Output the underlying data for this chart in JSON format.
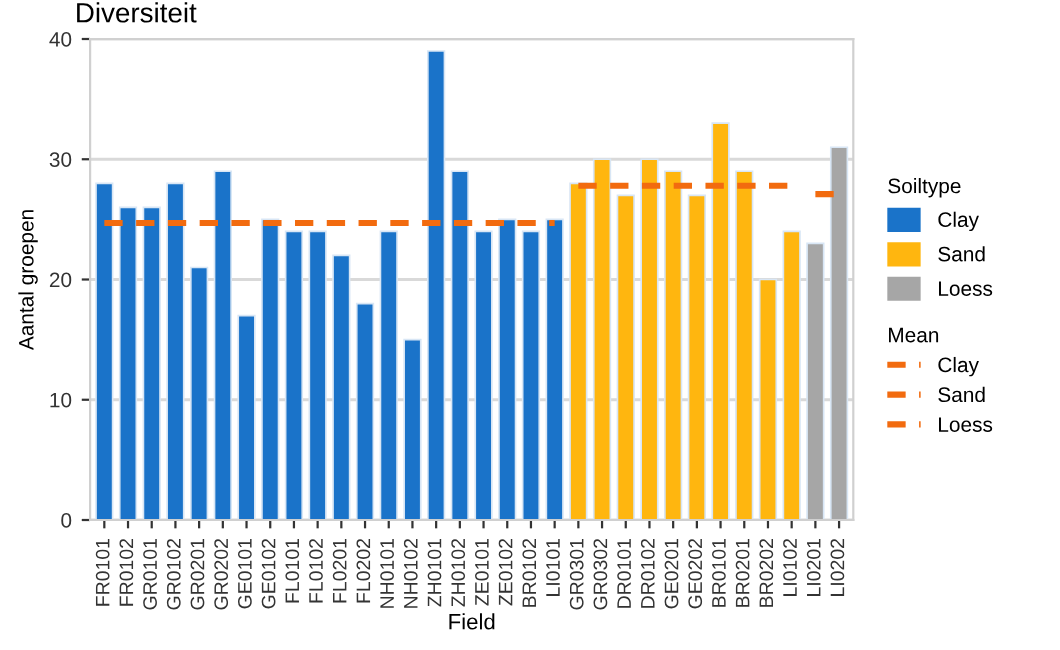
{
  "chart_data": {
    "type": "bar",
    "title": "Diversiteit",
    "xlabel": "Field",
    "ylabel": "Aantal groepen",
    "legend_title": [
      "Soiltype",
      "Mean"
    ],
    "categories": [
      "FR0101",
      "FR0102",
      "GR0101",
      "GR0102",
      "GR0201",
      "GR0202",
      "GE0101",
      "GE0102",
      "FL0101",
      "FL0102",
      "FL0201",
      "FL0202",
      "NH0101",
      "NH0102",
      "ZH0101",
      "ZH0102",
      "ZE0101",
      "ZE0102",
      "BR0102",
      "LI0101",
      "GR0301",
      "GR0302",
      "DR0101",
      "DR0102",
      "GE0201",
      "GE0202",
      "BR0101",
      "BR0201",
      "BR0202",
      "LI0102",
      "LI0201",
      "LI0202"
    ],
    "series": [
      {
        "name": "Clay",
        "color": "#1a73c9",
        "values": [
          28,
          26,
          26,
          28,
          21,
          29,
          17,
          25,
          24,
          24,
          22,
          18,
          24,
          15,
          39,
          29,
          24,
          25,
          24,
          25,
          null,
          null,
          null,
          null,
          null,
          null,
          null,
          null,
          null,
          null,
          null,
          null
        ]
      },
      {
        "name": "Sand",
        "color": "#ffb60f",
        "values": [
          null,
          null,
          null,
          null,
          null,
          null,
          null,
          null,
          null,
          null,
          null,
          null,
          null,
          null,
          null,
          null,
          null,
          null,
          null,
          null,
          28,
          30,
          27,
          30,
          29,
          27,
          33,
          29,
          20,
          24,
          null,
          null
        ]
      },
      {
        "name": "Loess",
        "color": "#a6a6a6",
        "values": [
          null,
          null,
          null,
          null,
          null,
          null,
          null,
          null,
          null,
          null,
          null,
          null,
          null,
          null,
          null,
          null,
          null,
          null,
          null,
          null,
          null,
          null,
          null,
          null,
          null,
          null,
          null,
          null,
          null,
          null,
          23,
          31
        ]
      },
      {
        "name": "Clay",
        "type": "line",
        "color": "#f26b0f",
        "line_style": "dashed",
        "values": [
          24.7,
          24.7,
          24.7,
          24.7,
          24.7,
          24.7,
          24.7,
          24.7,
          24.7,
          24.7,
          24.7,
          24.7,
          24.7,
          24.7,
          24.7,
          24.7,
          24.7,
          24.7,
          24.7,
          24.7,
          null,
          null,
          null,
          null,
          null,
          null,
          null,
          null,
          null,
          null,
          null,
          null
        ]
      },
      {
        "name": "Sand",
        "type": "line",
        "color": "#f26b0f",
        "line_style": "dashed",
        "values": [
          null,
          null,
          null,
          null,
          null,
          null,
          null,
          null,
          null,
          null,
          null,
          null,
          null,
          null,
          null,
          null,
          null,
          null,
          null,
          null,
          27.8,
          27.8,
          27.8,
          27.8,
          27.8,
          27.8,
          27.8,
          27.8,
          27.8,
          27.8,
          null,
          null
        ]
      },
      {
        "name": "Loess",
        "type": "line",
        "color": "#f26b0f",
        "line_style": "dashed",
        "values": [
          null,
          null,
          null,
          null,
          null,
          null,
          null,
          null,
          null,
          null,
          null,
          null,
          null,
          null,
          null,
          null,
          null,
          null,
          null,
          null,
          null,
          null,
          null,
          null,
          null,
          null,
          null,
          null,
          null,
          null,
          27.1,
          27.1
        ]
      }
    ],
    "ylim": [
      0,
      40
    ],
    "yticks": [
      0,
      10,
      20,
      30,
      40
    ],
    "grid": "y",
    "legend": "right"
  }
}
